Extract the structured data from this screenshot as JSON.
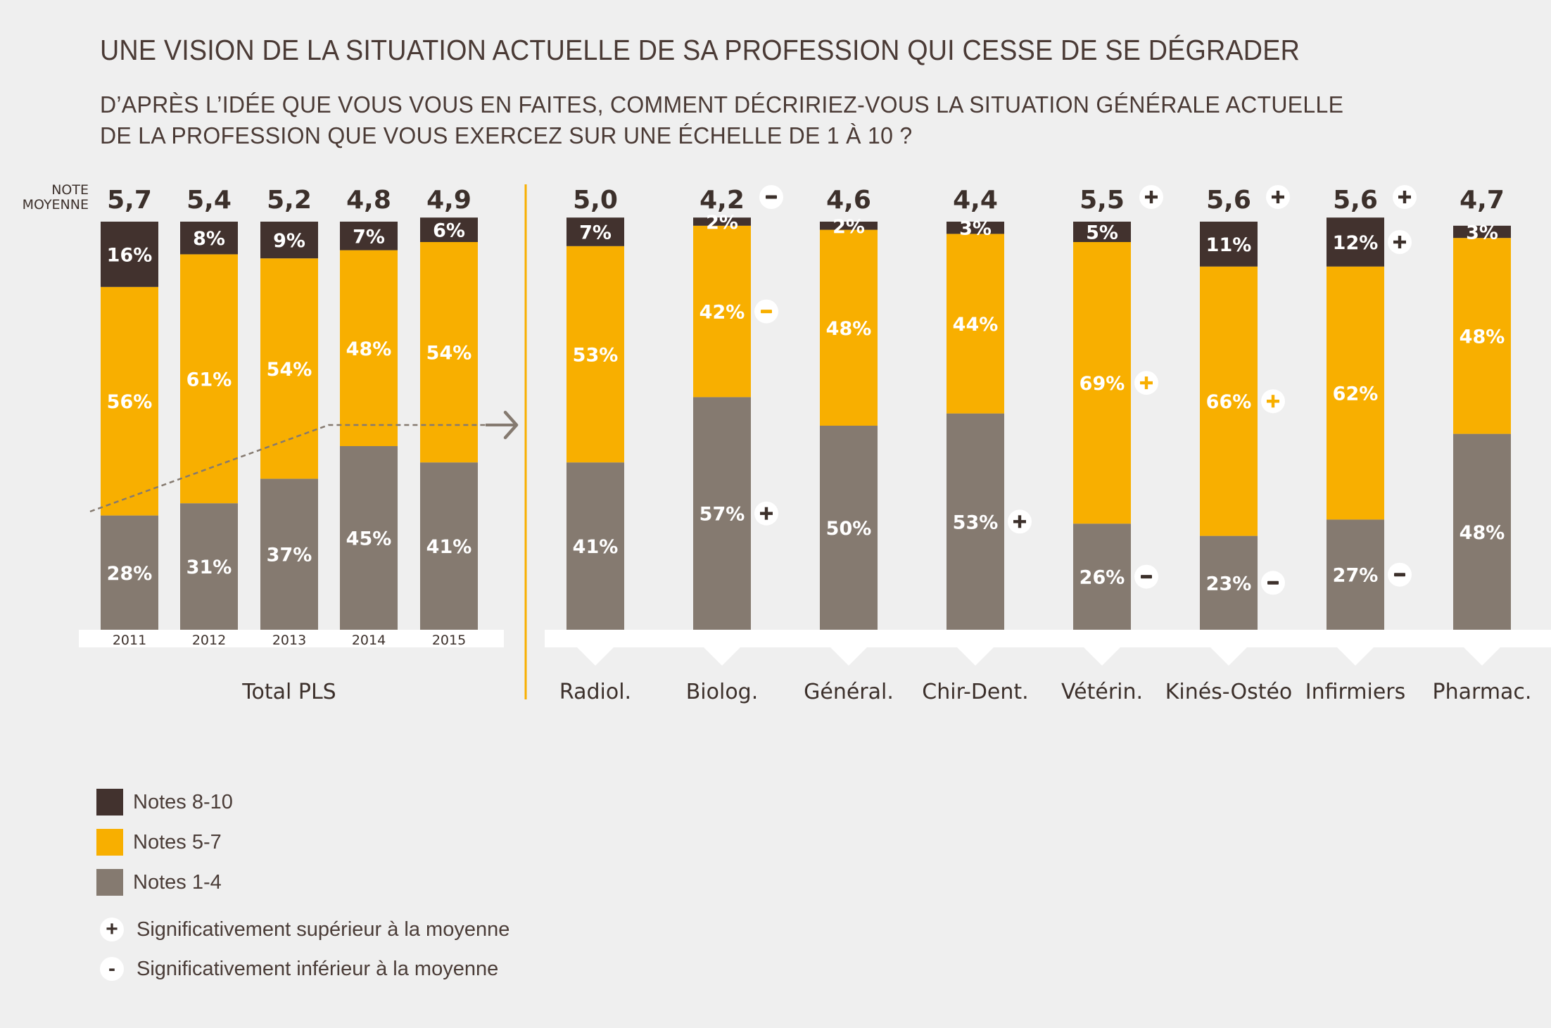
{
  "title": "UNE VISION DE LA SITUATION ACTUELLE DE SA PROFESSION QUI CESSE DE SE DÉGRADER",
  "subtitle_lines": [
    "D’APRÈS L’IDÉE QUE VOUS VOUS EN FAITES, COMMENT DÉCRIRIEZ-VOUS LA SITUATION GÉNÉRALE ACTUELLE",
    "DE LA PROFESSION QUE VOUS EXERCEZ SUR UNE ÉCHELLE DE 1 À 10 ?"
  ],
  "note_moyenne_label": [
    "NOTE",
    "MOYENNE"
  ],
  "colors": {
    "notes_8_10": "#42322e",
    "notes_5_7": "#f8af00",
    "notes_1_4": "#857a70",
    "divider": "#f8af00",
    "band": "#ffffff",
    "trend": "#857a70",
    "text": "#3c302b"
  },
  "chart_data": [
    {
      "type": "bar",
      "stacked": true,
      "group_label": "Total PLS",
      "categories": [
        "2011",
        "2012",
        "2013",
        "2014",
        "2015"
      ],
      "averages": [
        "5,7",
        "5,4",
        "5,2",
        "4,8",
        "4,9"
      ],
      "average_sig": [
        "",
        "",
        "",
        "",
        ""
      ],
      "series": [
        {
          "name": "Notes 1-4",
          "values": [
            28,
            31,
            37,
            45,
            41
          ],
          "labels": [
            "28%",
            "31%",
            "37%",
            "45%",
            "41%"
          ],
          "sig": [
            "",
            "",
            "",
            "",
            ""
          ]
        },
        {
          "name": "Notes 5-7",
          "values": [
            56,
            61,
            54,
            48,
            54
          ],
          "labels": [
            "56%",
            "61%",
            "54%",
            "48%",
            "54%"
          ],
          "sig": [
            "",
            "",
            "",
            "",
            ""
          ]
        },
        {
          "name": "Notes 8-10",
          "values": [
            16,
            8,
            9,
            7,
            6
          ],
          "labels": [
            "16%",
            "8%",
            "9%",
            "7%",
            "6%"
          ],
          "sig": [
            "",
            "",
            "",
            "",
            ""
          ]
        }
      ],
      "ylim": [
        0,
        100
      ]
    },
    {
      "type": "bar",
      "stacked": true,
      "group_label": "",
      "categories": [
        "Radiol.",
        "Biolog.",
        "Général.",
        "Chir-Dent.",
        "Vétérin.",
        "Kinés-Ostéo",
        "Infirmiers",
        "Pharmac."
      ],
      "averages": [
        "5,0",
        "4,2",
        "4,6",
        "4,4",
        "5,5",
        "5,6",
        "5,6",
        "4,7"
      ],
      "average_sig": [
        "",
        "-",
        "",
        "",
        "+",
        "+",
        "+",
        ""
      ],
      "series": [
        {
          "name": "Notes 1-4",
          "values": [
            41,
            57,
            50,
            53,
            26,
            23,
            27,
            48
          ],
          "labels": [
            "41%",
            "57%",
            "50%",
            "53%",
            "26%",
            "23%",
            "27%",
            "48%"
          ],
          "sig": [
            "",
            "+",
            "",
            "+",
            "-",
            "-",
            "-",
            ""
          ]
        },
        {
          "name": "Notes 5-7",
          "values": [
            53,
            42,
            48,
            44,
            69,
            66,
            62,
            48
          ],
          "labels": [
            "53%",
            "42%",
            "48%",
            "44%",
            "69%",
            "66%",
            "62%",
            "48%"
          ],
          "sig": [
            "",
            "-",
            "",
            "",
            "+",
            "+",
            "",
            ""
          ]
        },
        {
          "name": "Notes 8-10",
          "values": [
            7,
            2,
            2,
            3,
            5,
            11,
            12,
            3
          ],
          "labels": [
            "7%",
            "2%",
            "2%",
            "3%",
            "5%",
            "11%",
            "12%",
            "3%"
          ],
          "sig": [
            "",
            "",
            "",
            "",
            "",
            "",
            "+",
            ""
          ]
        }
      ],
      "ylim": [
        0,
        100
      ]
    }
  ],
  "legend": [
    {
      "label": "Notes 8-10",
      "color": "#42322e"
    },
    {
      "label": "Notes 5-7",
      "color": "#f8af00"
    },
    {
      "label": "Notes 1-4",
      "color": "#857a70"
    }
  ],
  "significance_legend": [
    {
      "symbol": "+",
      "label": "Significativement supérieur à la moyenne"
    },
    {
      "symbol": "-",
      "label": "Significativement inférieur à la moyenne"
    }
  ]
}
